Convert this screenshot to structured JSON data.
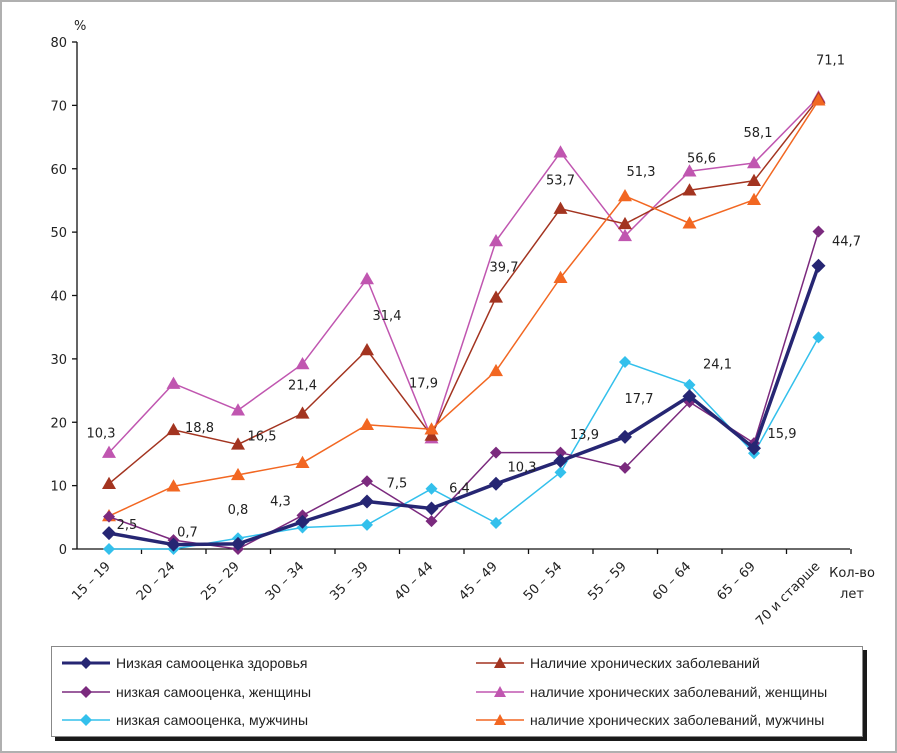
{
  "chart_data": {
    "type": "line",
    "title": "",
    "ylabel": "%",
    "xlabel": "Кол-во лет",
    "ylim": [
      0,
      80
    ],
    "yticks": [
      0,
      10,
      20,
      30,
      40,
      50,
      60,
      70,
      80
    ],
    "grid": false,
    "legend_position": "bottom",
    "categories": [
      "15 – 19",
      "20 – 24",
      "25 – 29",
      "30 – 34",
      "35 – 39",
      "40 – 44",
      "45 – 49",
      "50 – 54",
      "55 – 59",
      "60 – 64",
      "65 – 69",
      "70 и старше"
    ],
    "series": [
      {
        "name": "Низкая самооценка здоровья",
        "color": "#262673",
        "marker": "diamond",
        "weight": "thick",
        "values": [
          2.5,
          0.7,
          0.8,
          4.3,
          7.5,
          6.4,
          10.3,
          13.9,
          17.7,
          24.1,
          15.9,
          44.7
        ],
        "labels": [
          "2,5",
          "0,7",
          "0,8",
          "4,3",
          "7,5",
          "6,4",
          "10,3",
          "13,9",
          "17,7",
          "24,1",
          "15,9",
          "44,7"
        ]
      },
      {
        "name": "низкая самооценка, женщины",
        "color": "#7B2A7E",
        "marker": "diamond",
        "weight": "thin",
        "values": [
          5.1,
          1.4,
          0.0,
          5.3,
          10.7,
          4.4,
          15.2,
          15.2,
          12.8,
          23.2,
          16.7,
          50.1
        ]
      },
      {
        "name": "низкая самооценка, мужчины",
        "color": "#33C0EC",
        "marker": "diamond",
        "weight": "thin",
        "values": [
          0.0,
          0.0,
          1.7,
          3.4,
          3.8,
          9.5,
          4.1,
          12.1,
          29.5,
          25.9,
          15.1,
          33.4
        ]
      },
      {
        "name": "Наличие хронических заболеваний",
        "color": "#A33420",
        "marker": "triangle",
        "weight": "thin",
        "values": [
          10.3,
          18.8,
          16.5,
          21.4,
          31.4,
          17.9,
          39.7,
          53.7,
          51.3,
          56.6,
          58.1,
          71.1
        ],
        "labels": [
          "10,3",
          "18,8",
          "16,5",
          "21,4",
          "31,4",
          "17,9",
          "39,7",
          "53,7",
          "51,3",
          "56,6",
          "58,1",
          "71,1"
        ]
      },
      {
        "name": "наличие хронических заболеваний, женщины",
        "color": "#C056B0",
        "marker": "triangle",
        "weight": "thin",
        "values": [
          15.2,
          26.1,
          21.9,
          29.2,
          42.6,
          17.5,
          48.6,
          62.6,
          49.4,
          59.6,
          60.9,
          71.3
        ]
      },
      {
        "name": "наличие хронических заболеваний, мужчины",
        "color": "#F26722",
        "marker": "triangle",
        "weight": "thin",
        "values": [
          5.2,
          9.9,
          11.7,
          13.6,
          19.6,
          18.9,
          28.1,
          42.8,
          55.7,
          51.4,
          55.1,
          70.8
        ]
      }
    ]
  },
  "axis": {
    "y_unit": "%",
    "x_title_line1": "Кол-во",
    "x_title_line2": "лет"
  },
  "legend": {
    "items": [
      {
        "label": "Низкая самооценка здоровья",
        "color": "#262673",
        "marker": "diamond"
      },
      {
        "label": "Наличие хронических заболеваний",
        "color": "#A33420",
        "marker": "triangle"
      },
      {
        "label": "низкая самооценка, женщины",
        "color": "#7B2A7E",
        "marker": "diamond"
      },
      {
        "label": "наличие хронических заболеваний, женщины",
        "color": "#C056B0",
        "marker": "triangle"
      },
      {
        "label": "низкая самооценка, мужчины",
        "color": "#33C0EC",
        "marker": "diamond"
      },
      {
        "label": "наличие хронических заболеваний, мужчины",
        "color": "#F26722",
        "marker": "triangle"
      }
    ]
  }
}
